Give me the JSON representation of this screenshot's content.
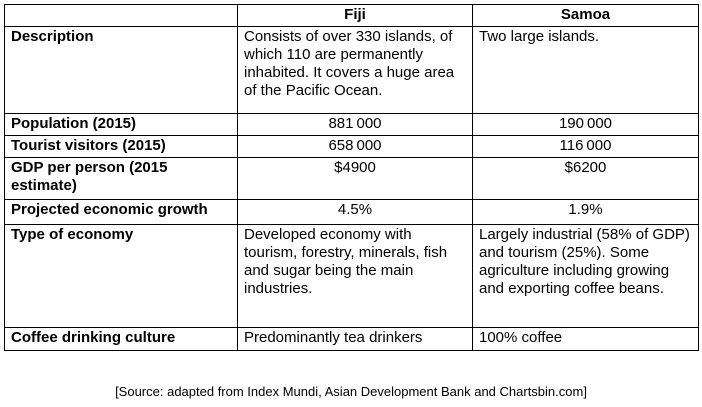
{
  "table": {
    "columns": [
      "",
      "Fiji",
      "Samoa"
    ],
    "rows": [
      {
        "label": "Description",
        "fiji": "Consists of over 330 islands, of which 110 are permanently inhabited.  It covers a huge area of the Pacific Ocean.",
        "samoa": "Two large islands."
      },
      {
        "label": "Population (2015)",
        "fiji": "881 000",
        "samoa": "190 000"
      },
      {
        "label": "Tourist visitors (2015)",
        "fiji": "658 000",
        "samoa": "116 000"
      },
      {
        "label": "GDP per person (2015 estimate)",
        "fiji": "$4900",
        "samoa": "$6200"
      },
      {
        "label": "Projected economic growth",
        "fiji": "4.5%",
        "samoa": "1.9%"
      },
      {
        "label": "Type of economy",
        "fiji": "Developed economy with tourism, forestry, minerals, fish and sugar being the main industries.",
        "samoa": "Largely industrial (58% of GDP) and tourism (25%). Some agriculture including growing and exporting coffee beans."
      },
      {
        "label": "Coffee drinking culture",
        "fiji": "Predominantly tea drinkers",
        "samoa": "100% coffee"
      }
    ]
  },
  "source": "[Source: adapted from Index Mundi, Asian Development Bank and Chartsbin.com]"
}
